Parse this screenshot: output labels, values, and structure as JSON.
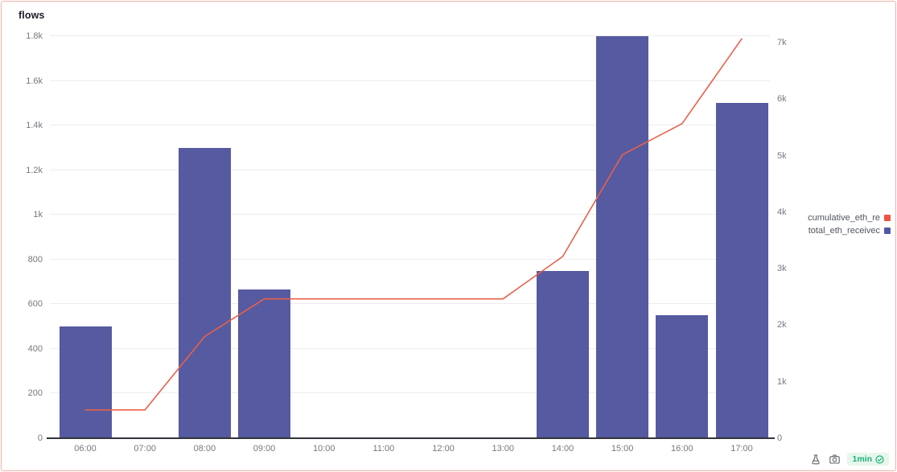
{
  "panel": {
    "title": "flows",
    "border_color": "#f0b3a8",
    "background": "#ffffff"
  },
  "legend": {
    "entries": [
      {
        "label": "cumulative_eth_re",
        "color": "#ee5340"
      },
      {
        "label": "total_eth_receivec",
        "color": "#4f57a4"
      }
    ]
  },
  "footer": {
    "flask_icon": "flask-icon",
    "camera_icon": "camera-icon",
    "refresh_badge": {
      "text": "1min",
      "icon": "check-circle-icon",
      "color": "#1db36f",
      "background": "#e6f7ee"
    }
  },
  "chart_data": {
    "type": "bar",
    "title": "flows",
    "x": [
      "06:00",
      "07:00",
      "08:00",
      "09:00",
      "10:00",
      "11:00",
      "12:00",
      "13:00",
      "14:00",
      "15:00",
      "16:00",
      "17:00"
    ],
    "series": [
      {
        "name": "total_eth_receivec",
        "type": "bar",
        "axis": "left",
        "color": "#565aa0",
        "values": [
          500,
          0,
          1300,
          665,
          0,
          0,
          0,
          0,
          750,
          1800,
          550,
          1500
        ]
      },
      {
        "name": "cumulative_eth_re",
        "type": "line",
        "axis": "right",
        "color": "#e9604a",
        "values": [
          500,
          500,
          1800,
          2465,
          2465,
          2465,
          2465,
          2465,
          3215,
          5015,
          5565,
          7065
        ]
      }
    ],
    "left_axis": {
      "range": [
        0,
        1800
      ],
      "tick_values": [
        0,
        200,
        400,
        600,
        800,
        1000,
        1200,
        1400,
        1600,
        1800
      ],
      "tick_labels": [
        "0",
        "200",
        "400",
        "600",
        "800",
        "1k",
        "1.2k",
        "1.4k",
        "1.6k",
        "1.8k"
      ]
    },
    "right_axis": {
      "range": [
        0,
        7000
      ],
      "tick_values": [
        0,
        1000,
        2000,
        3000,
        4000,
        5000,
        6000,
        7000
      ],
      "tick_labels": [
        "0",
        "1k",
        "2k",
        "3k",
        "4k",
        "5k",
        "6k",
        "7k"
      ]
    },
    "grid": "horizontal",
    "grid_color": "#ededf1",
    "axis_color": "#33343a",
    "tick_color": "#75787f",
    "legend_position": "right-outside"
  }
}
